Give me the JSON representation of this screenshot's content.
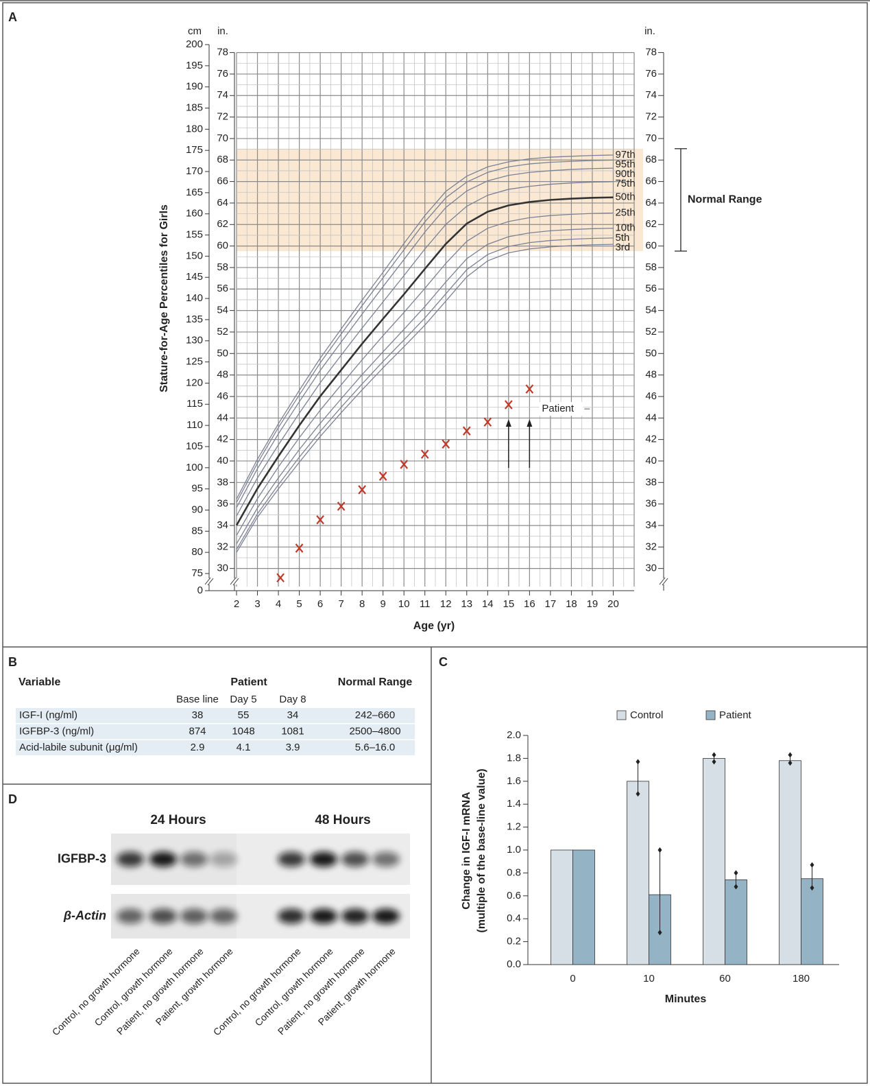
{
  "chart_data": [
    {
      "label": "A",
      "type": "line",
      "y_label": "Stature-for-Age Percentiles for Girls",
      "x_label": "Age (yr)",
      "y_unit": "cm",
      "y2_unit": "in.",
      "xlim": [
        2,
        21
      ],
      "xticks": [
        2,
        3,
        4,
        5,
        6,
        7,
        8,
        9,
        10,
        11,
        12,
        13,
        14,
        15,
        16,
        17,
        18,
        19,
        20
      ],
      "ylim": [
        75,
        200
      ],
      "yticks": [
        75,
        80,
        85,
        90,
        95,
        100,
        105,
        110,
        115,
        120,
        125,
        130,
        135,
        140,
        145,
        150,
        155,
        160,
        165,
        170,
        175,
        180,
        185,
        190,
        195,
        200
      ],
      "y_break_tick": 0,
      "y2lim": [
        29.53,
        78.74
      ],
      "y2ticks": [
        30,
        32,
        34,
        36,
        38,
        40,
        42,
        44,
        46,
        48,
        50,
        52,
        54,
        56,
        58,
        60,
        62,
        64,
        66,
        68,
        70,
        72,
        74,
        76,
        78
      ],
      "grid": true,
      "normal_range": {
        "label": "Normal Range",
        "ylim": [
          151.2,
          175.4
        ],
        "color": "#fbe8d3"
      },
      "x": [
        2,
        3,
        4,
        5,
        6,
        7,
        8,
        9,
        10,
        11,
        12,
        13,
        14,
        15,
        16,
        17,
        18,
        19,
        20
      ],
      "series": [
        {
          "name": "97th",
          "color": "#7b8194",
          "values": [
            92.6,
            102.0,
            110.4,
            118.3,
            125.9,
            132.8,
            139.6,
            146.2,
            153.0,
            159.6,
            165.3,
            168.9,
            171.1,
            172.3,
            173.0,
            173.4,
            173.6,
            173.8,
            173.9
          ]
        },
        {
          "name": "95th",
          "color": "#7b8194",
          "values": [
            91.8,
            101.1,
            109.5,
            117.2,
            124.8,
            131.6,
            138.3,
            144.9,
            151.5,
            158.1,
            163.8,
            167.5,
            169.8,
            171.1,
            171.8,
            172.2,
            172.4,
            172.6,
            172.7
          ]
        },
        {
          "name": "90th",
          "color": "#7b8194",
          "values": [
            90.6,
            99.8,
            108.0,
            115.6,
            123.0,
            129.7,
            136.3,
            142.8,
            149.2,
            155.7,
            161.5,
            165.4,
            167.8,
            169.1,
            169.8,
            170.2,
            170.5,
            170.7,
            170.8
          ]
        },
        {
          "name": "75th",
          "color": "#7b8194",
          "values": [
            88.6,
            97.6,
            105.4,
            112.9,
            120.1,
            126.6,
            133.0,
            139.2,
            145.4,
            151.7,
            157.5,
            161.8,
            164.4,
            165.8,
            166.5,
            167.0,
            167.3,
            167.5,
            167.6
          ]
        },
        {
          "name": "50th",
          "color": "#333333",
          "values": [
            86.4,
            95.1,
            102.7,
            110.0,
            116.9,
            123.1,
            129.3,
            135.2,
            141.0,
            147.0,
            152.9,
            157.7,
            160.5,
            162.0,
            162.8,
            163.3,
            163.6,
            163.8,
            163.9
          ]
        },
        {
          "name": "25th",
          "color": "#7b8194",
          "values": [
            84.0,
            92.7,
            100.2,
            107.1,
            113.6,
            119.6,
            125.5,
            131.2,
            136.7,
            142.4,
            148.3,
            153.5,
            156.6,
            158.2,
            159.1,
            159.6,
            159.9,
            160.1,
            160.2
          ]
        },
        {
          "name": "10th",
          "color": "#7b8194",
          "values": [
            82.0,
            90.5,
            97.6,
            104.3,
            110.5,
            116.3,
            122.0,
            127.4,
            132.7,
            138.1,
            143.9,
            149.4,
            152.8,
            154.6,
            155.5,
            156.0,
            156.3,
            156.5,
            156.6
          ]
        },
        {
          "name": "5th",
          "color": "#7b8194",
          "values": [
            80.7,
            89.1,
            96.0,
            102.5,
            108.6,
            114.3,
            119.8,
            125.1,
            130.2,
            135.4,
            141.1,
            146.8,
            150.4,
            152.3,
            153.2,
            153.7,
            154.0,
            154.2,
            154.3
          ]
        },
        {
          "name": "3rd",
          "color": "#7b8194",
          "values": [
            80.0,
            88.3,
            95.0,
            101.3,
            107.4,
            113.0,
            118.4,
            123.6,
            128.6,
            133.7,
            139.4,
            145.1,
            148.9,
            150.8,
            151.7,
            152.2,
            152.5,
            152.7,
            152.8
          ]
        },
        {
          "name": "Patient",
          "type": "scatter",
          "color": "#c0392b",
          "x": [
            4.1,
            5,
            6,
            7,
            8,
            9,
            10,
            11,
            12,
            13,
            14,
            15,
            16
          ],
          "values": [
            74.0,
            81.0,
            87.7,
            90.9,
            94.8,
            98.0,
            100.8,
            103.2,
            105.6,
            108.7,
            110.8,
            114.9,
            118.6
          ]
        }
      ]
    },
    {
      "label": "C",
      "type": "bar",
      "y_label": [
        "Change in IGF-I mRNA",
        "(multiple of  the base-line value)"
      ],
      "x_label": "Minutes",
      "categories": [
        "0",
        "10",
        "60",
        "180"
      ],
      "ylim": [
        0,
        2
      ],
      "yticks": [
        {
          "value": 0,
          "label": "0.0"
        },
        0.2,
        0.4,
        0.6,
        0.8,
        {
          "value": 1,
          "label": "1.0"
        },
        1.2,
        1.4,
        1.6,
        1.8,
        {
          "value": 2,
          "label": "2.0"
        }
      ],
      "series": [
        {
          "name": "Control",
          "color": "#d5dfe5",
          "values": [
            1.0,
            1.6,
            1.8,
            1.78
          ],
          "errors_low": [
            null,
            1.49,
            1.77,
            1.76
          ],
          "errors_high": [
            null,
            1.77,
            1.83,
            1.83
          ]
        },
        {
          "name": "Patient",
          "color": "#94b3c5",
          "values": [
            1.0,
            0.61,
            0.74,
            0.75
          ],
          "errors_low": [
            null,
            0.28,
            0.68,
            0.67
          ],
          "errors_high": [
            null,
            1.0,
            0.8,
            0.87
          ]
        }
      ]
    }
  ],
  "table": {
    "label": "B",
    "columns": [
      "Variable",
      "Patient",
      "Normal Range"
    ],
    "subcolumns": [
      "Base line",
      "Day 5",
      "Day 8"
    ],
    "rows": [
      [
        "IGF-I (ng/ml)",
        "38",
        "55",
        "34",
        "242–660"
      ],
      [
        "IGFBP-3 (ng/ml)",
        "874",
        "1048",
        "1081",
        "2500–4800"
      ],
      [
        "Acid-labile subunit (μg/ml)",
        "2.9",
        "4.1",
        "3.9",
        "5.6–16.0"
      ]
    ]
  },
  "blot": {
    "label": "D",
    "time_points": [
      "24 Hours",
      "48 Hours"
    ],
    "rows": [
      "IGFBP-3",
      "β-Actin"
    ],
    "lanes": [
      "Control, no growth hormone",
      "Control, growth hormone",
      "Patient, no growth hormone",
      "Patient, growth hormone",
      "Control, no growth hormone",
      "Control, growth hormone",
      "Patient, no growth hormone",
      "Patient, growth hormone"
    ]
  }
}
